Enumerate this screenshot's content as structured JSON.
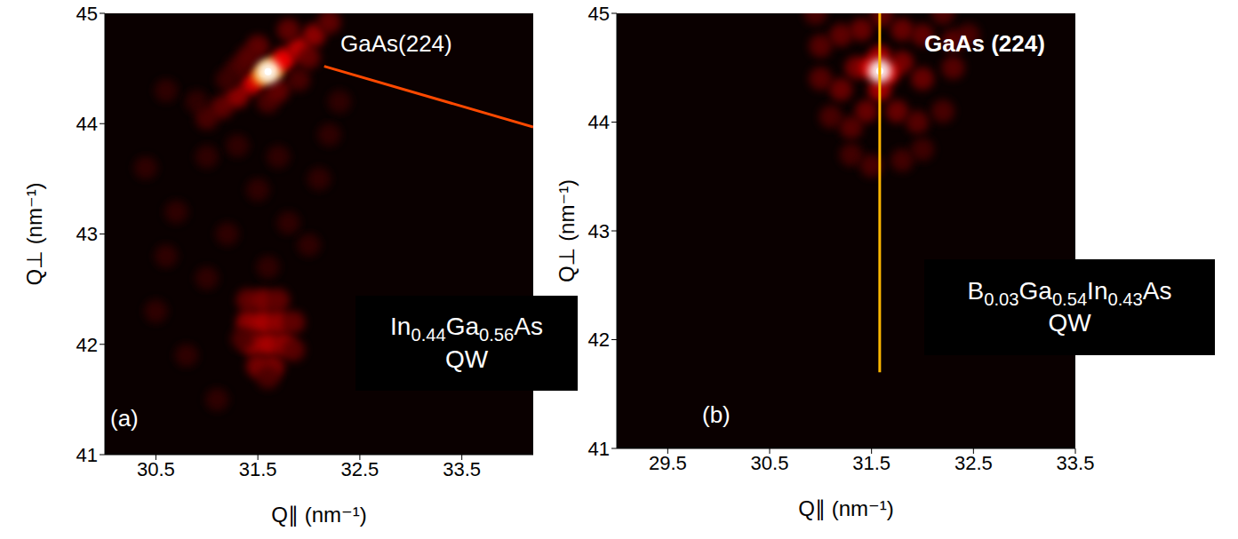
{
  "chart_data": [
    {
      "type": "heatmap",
      "panel": "(a)",
      "xlabel": "Q∥ (nm⁻¹)",
      "ylabel": "Q⊥ (nm⁻¹)",
      "xlim": [
        30.0,
        34.2
      ],
      "xticks": [
        30.5,
        31.5,
        32.5,
        33.5
      ],
      "ylim": [
        41,
        45
      ],
      "yticks": [
        41,
        42,
        43,
        44,
        45
      ],
      "grid": false,
      "annotations": [
        "GaAs(224)",
        "In0.44Ga0.56As\nQW"
      ],
      "cells": [
        [
          30.4,
          43.6,
          0.1
        ],
        [
          30.7,
          43.2,
          0.1
        ],
        [
          31.0,
          43.7,
          0.1
        ],
        [
          31.2,
          43.0,
          0.1
        ],
        [
          31.5,
          43.4,
          0.1
        ],
        [
          31.8,
          43.1,
          0.1
        ],
        [
          32.1,
          43.5,
          0.1
        ],
        [
          30.6,
          42.8,
          0.1
        ],
        [
          31.0,
          42.6,
          0.1
        ],
        [
          32.0,
          42.9,
          0.1
        ],
        [
          30.9,
          44.2,
          0.1
        ],
        [
          30.6,
          44.3,
          0.1
        ],
        [
          32.3,
          44.2,
          0.1
        ],
        [
          31.3,
          43.8,
          0.1
        ],
        [
          31.7,
          43.7,
          0.1
        ],
        [
          30.5,
          42.3,
          0.1
        ],
        [
          30.8,
          41.9,
          0.1
        ],
        [
          31.1,
          41.5,
          0.1
        ],
        [
          32.2,
          43.9,
          0.1
        ],
        [
          31.6,
          42.7,
          0.1
        ],
        [
          31.0,
          44.05,
          0.15
        ],
        [
          31.15,
          44.15,
          0.2
        ],
        [
          31.3,
          44.25,
          0.3
        ],
        [
          31.45,
          44.37,
          0.45
        ],
        [
          31.55,
          44.45,
          0.7
        ],
        [
          31.65,
          44.5,
          0.7
        ],
        [
          31.75,
          44.58,
          0.5
        ],
        [
          31.9,
          44.68,
          0.4
        ],
        [
          32.05,
          44.8,
          0.3
        ],
        [
          32.2,
          44.92,
          0.2
        ],
        [
          31.3,
          44.5,
          0.15
        ],
        [
          31.5,
          44.7,
          0.2
        ],
        [
          31.8,
          44.85,
          0.2
        ],
        [
          31.9,
          44.4,
          0.15
        ],
        [
          31.6,
          44.2,
          0.15
        ],
        [
          31.2,
          44.4,
          0.12
        ],
        [
          32.0,
          44.6,
          0.2
        ],
        [
          31.4,
          44.6,
          0.18
        ],
        [
          31.7,
          44.3,
          0.2
        ],
        [
          31.6,
          44.47,
          1.0
        ],
        [
          31.4,
          42.4,
          0.2
        ],
        [
          31.55,
          42.4,
          0.25
        ],
        [
          31.7,
          42.4,
          0.2
        ],
        [
          31.4,
          42.2,
          0.3
        ],
        [
          31.55,
          42.2,
          0.35
        ],
        [
          31.7,
          42.2,
          0.3
        ],
        [
          31.85,
          42.2,
          0.2
        ],
        [
          31.45,
          42.0,
          0.3
        ],
        [
          31.6,
          42.0,
          0.35
        ],
        [
          31.75,
          42.0,
          0.3
        ],
        [
          31.5,
          41.8,
          0.25
        ],
        [
          31.65,
          41.8,
          0.25
        ],
        [
          31.6,
          41.7,
          0.15
        ],
        [
          31.35,
          42.05,
          0.15
        ],
        [
          31.85,
          41.95,
          0.18
        ]
      ],
      "lines": [
        {
          "x": [
            32.15,
            34.2
          ],
          "y": [
            44.52,
            43.97
          ],
          "value": 0.6
        }
      ]
    },
    {
      "type": "heatmap",
      "panel": "(b)",
      "xlabel": "Q∥ (nm⁻¹)",
      "ylabel": "Q⊥ (nm⁻¹)",
      "xlim": [
        29.0,
        33.5
      ],
      "xticks": [
        29.5,
        30.5,
        31.5,
        32.5,
        33.5
      ],
      "ylim": [
        41,
        45
      ],
      "yticks": [
        41,
        42,
        43,
        44,
        45
      ],
      "grid": false,
      "annotations": [
        "GaAs (224)",
        "B0.03Ga0.54In0.43As\nQW"
      ],
      "cells": [
        [
          31.0,
          44.7,
          0.18
        ],
        [
          31.2,
          44.8,
          0.2
        ],
        [
          31.4,
          44.85,
          0.22
        ],
        [
          31.8,
          44.85,
          0.22
        ],
        [
          32.0,
          44.8,
          0.2
        ],
        [
          32.3,
          44.75,
          0.18
        ],
        [
          31.0,
          44.4,
          0.18
        ],
        [
          31.2,
          44.3,
          0.22
        ],
        [
          31.35,
          44.5,
          0.25
        ],
        [
          31.8,
          44.55,
          0.25
        ],
        [
          32.0,
          44.4,
          0.22
        ],
        [
          32.3,
          44.5,
          0.18
        ],
        [
          32.45,
          44.8,
          0.15
        ],
        [
          31.1,
          44.05,
          0.15
        ],
        [
          31.3,
          43.95,
          0.18
        ],
        [
          31.45,
          44.1,
          0.22
        ],
        [
          31.75,
          44.1,
          0.22
        ],
        [
          31.95,
          44.0,
          0.18
        ],
        [
          32.2,
          44.1,
          0.15
        ],
        [
          31.3,
          43.7,
          0.14
        ],
        [
          31.5,
          43.6,
          0.15
        ],
        [
          31.8,
          43.65,
          0.14
        ],
        [
          32.0,
          43.75,
          0.13
        ],
        [
          30.95,
          45.0,
          0.15
        ],
        [
          31.6,
          44.98,
          0.2
        ],
        [
          32.2,
          45.0,
          0.16
        ],
        [
          31.5,
          44.5,
          0.45
        ],
        [
          31.66,
          44.45,
          0.45
        ],
        [
          31.58,
          44.6,
          0.35
        ],
        [
          31.58,
          44.3,
          0.35
        ],
        [
          31.58,
          44.47,
          1.0
        ]
      ],
      "lines": [
        {
          "x": [
            31.58,
            31.58
          ],
          "y": [
            41.7,
            45
          ],
          "value": 0.75
        }
      ]
    }
  ]
}
